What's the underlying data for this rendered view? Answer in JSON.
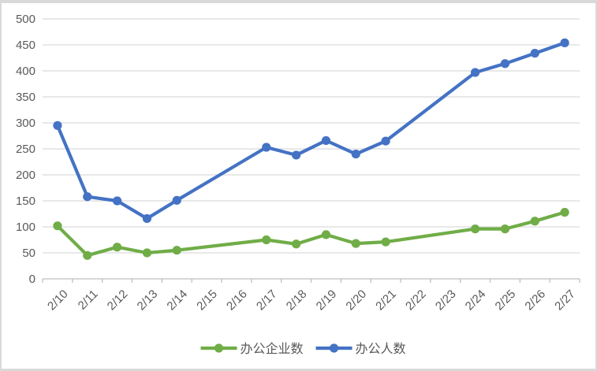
{
  "chart_data": {
    "type": "line",
    "title": "",
    "xlabel": "",
    "ylabel": "",
    "categories": [
      "2/10",
      "2/11",
      "2/12",
      "2/13",
      "2/14",
      "2/15",
      "2/16",
      "2/17",
      "2/18",
      "2/19",
      "2/20",
      "2/21",
      "2/22",
      "2/23",
      "2/24",
      "2/25",
      "2/26",
      "2/27"
    ],
    "series": [
      {
        "name": "办公企业数",
        "color": "#70AD47",
        "values": [
          102,
          45,
          61,
          50,
          55,
          null,
          null,
          75,
          67,
          85,
          68,
          71,
          null,
          null,
          96,
          96,
          111,
          128
        ]
      },
      {
        "name": "办公人数",
        "color": "#4472C4",
        "values": [
          295,
          158,
          150,
          116,
          151,
          null,
          null,
          253,
          238,
          266,
          240,
          265,
          null,
          null,
          397,
          414,
          434,
          454
        ]
      }
    ],
    "y_axis": {
      "min": 0,
      "max": 500,
      "step": 50,
      "tick_labels": [
        "0",
        "50",
        "100",
        "150",
        "200",
        "250",
        "300",
        "350",
        "400",
        "450",
        "500"
      ]
    },
    "x_axis": {
      "tick_labels": [
        "2/10",
        "2/11",
        "2/12",
        "2/13",
        "2/14",
        "2/15",
        "2/16",
        "2/17",
        "2/18",
        "2/19",
        "2/20",
        "2/21",
        "2/22",
        "2/23",
        "2/24",
        "2/25",
        "2/26",
        "2/27"
      ],
      "label_rotation_deg": -45
    },
    "legend": {
      "position": "bottom",
      "entries": [
        {
          "label": "办公企业数",
          "color": "#70AD47"
        },
        {
          "label": "办公人数",
          "color": "#4472C4"
        }
      ]
    },
    "grid": true,
    "colors": {
      "gridline": "#d9d9d9",
      "axis_line": "#bfbfbf",
      "tick_text": "#595959",
      "frame_border": "#d9d9d9",
      "background": "#ffffff"
    }
  }
}
